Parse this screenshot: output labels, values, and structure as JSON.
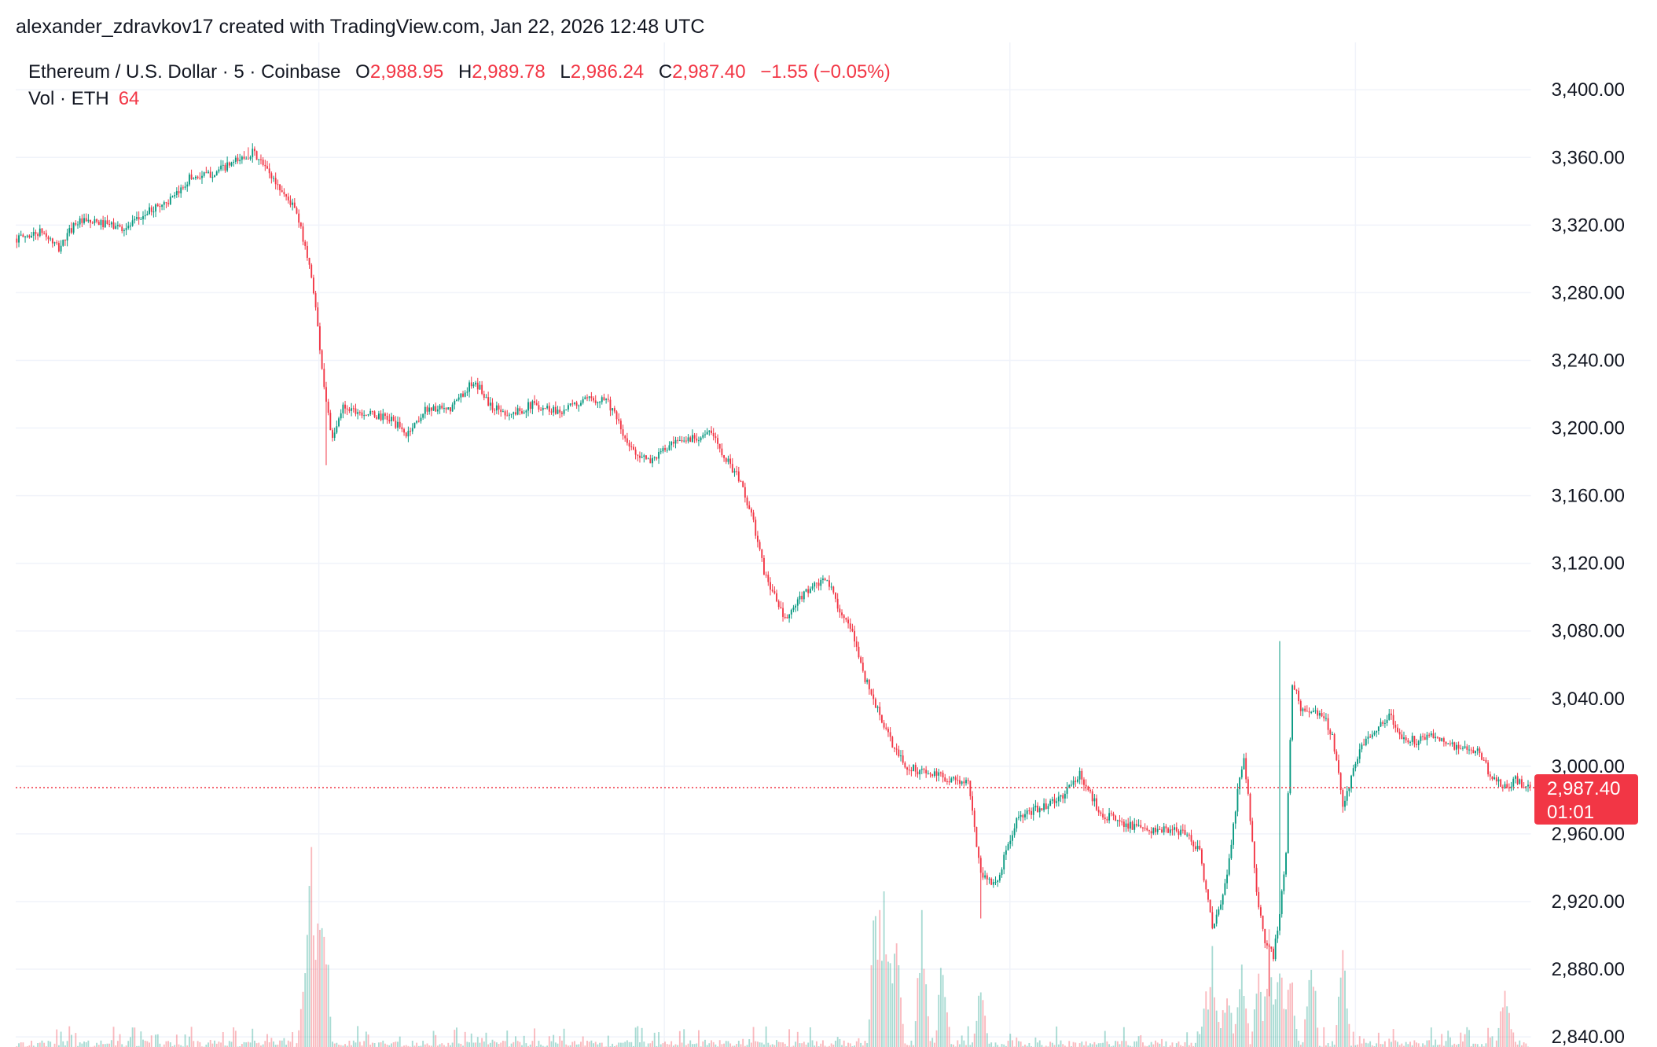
{
  "credit": {
    "author": "alexander_zdravkov17",
    "text": "alexander_zdravkov17 created with TradingView.com, Jan 22, 2026 12:48 UTC"
  },
  "legend": {
    "symbol": "Ethereum / U.S. Dollar · 5 · Coinbase",
    "open_label": "O",
    "open": "2,988.95",
    "high_label": "H",
    "high": "2,989.78",
    "low_label": "L",
    "low": "2,986.24",
    "close_label": "C",
    "close": "2,987.40",
    "change": "−1.55 (−0.05%)",
    "volume_label": "Vol · ETH",
    "volume": "64"
  },
  "price_tag": {
    "price": "2,987.40",
    "countdown": "01:01"
  },
  "colors": {
    "up": "#089981",
    "down": "#f23645",
    "grid": "#f0f3fa",
    "text": "#131722"
  },
  "chart_data": {
    "type": "candlestick",
    "symbol": "ETH/USD",
    "exchange": "Coinbase",
    "interval_minutes": 5,
    "y_axis": {
      "ticks": [
        "3,400.00",
        "3,360.00",
        "3,320.00",
        "3,280.00",
        "3,240.00",
        "3,200.00",
        "3,160.00",
        "3,120.00",
        "3,080.00",
        "3,040.00",
        "3,000.00",
        "2,960.00",
        "2,920.00",
        "2,880.00",
        "2,840.00"
      ],
      "range": [
        2834,
        3428
      ]
    },
    "grid": true,
    "last_price": 2987.4,
    "price_path": [
      [
        0,
        3312
      ],
      [
        12,
        3316
      ],
      [
        20,
        3306
      ],
      [
        28,
        3322
      ],
      [
        40,
        3321
      ],
      [
        52,
        3318
      ],
      [
        65,
        3330
      ],
      [
        75,
        3336
      ],
      [
        82,
        3348
      ],
      [
        92,
        3350
      ],
      [
        102,
        3356
      ],
      [
        112,
        3363
      ],
      [
        118,
        3354
      ],
      [
        126,
        3340
      ],
      [
        132,
        3330
      ],
      [
        137,
        3308
      ],
      [
        141,
        3282
      ],
      [
        146,
        3225
      ],
      [
        150,
        3192
      ],
      [
        155,
        3213
      ],
      [
        165,
        3209
      ],
      [
        178,
        3205
      ],
      [
        185,
        3196
      ],
      [
        195,
        3212
      ],
      [
        205,
        3210
      ],
      [
        215,
        3225
      ],
      [
        220,
        3224
      ],
      [
        225,
        3213
      ],
      [
        235,
        3208
      ],
      [
        245,
        3214
      ],
      [
        258,
        3210
      ],
      [
        270,
        3216
      ],
      [
        280,
        3218
      ],
      [
        285,
        3205
      ],
      [
        290,
        3190
      ],
      [
        300,
        3180
      ],
      [
        310,
        3189
      ],
      [
        320,
        3194
      ],
      [
        330,
        3197
      ],
      [
        338,
        3180
      ],
      [
        344,
        3168
      ],
      [
        350,
        3144
      ],
      [
        355,
        3115
      ],
      [
        365,
        3086
      ],
      [
        375,
        3104
      ],
      [
        385,
        3110
      ],
      [
        392,
        3090
      ],
      [
        398,
        3075
      ],
      [
        403,
        3052
      ],
      [
        410,
        3030
      ],
      [
        415,
        3015
      ],
      [
        422,
        3000
      ],
      [
        432,
        2996
      ],
      [
        442,
        2993
      ],
      [
        452,
        2990
      ],
      [
        458,
        2937
      ],
      [
        465,
        2930
      ],
      [
        475,
        2968
      ],
      [
        485,
        2975
      ],
      [
        495,
        2980
      ],
      [
        505,
        2995
      ],
      [
        515,
        2972
      ],
      [
        525,
        2967
      ],
      [
        535,
        2962
      ],
      [
        545,
        2962
      ],
      [
        555,
        2961
      ],
      [
        562,
        2950
      ],
      [
        568,
        2904
      ],
      [
        572,
        2917
      ],
      [
        576,
        2944
      ],
      [
        580,
        2985
      ],
      [
        583,
        3005
      ],
      [
        586,
        2970
      ],
      [
        589,
        2927
      ],
      [
        593,
        2895
      ],
      [
        597,
        2888
      ],
      [
        600,
        2912
      ],
      [
        603,
        2948
      ],
      [
        606,
        3050
      ],
      [
        610,
        3035
      ],
      [
        615,
        3030
      ],
      [
        620,
        3032
      ],
      [
        625,
        3018
      ],
      [
        630,
        2978
      ],
      [
        633,
        2988
      ],
      [
        638,
        3010
      ],
      [
        645,
        3022
      ],
      [
        652,
        3030
      ],
      [
        658,
        3017
      ],
      [
        665,
        3015
      ],
      [
        675,
        3018
      ],
      [
        685,
        3010
      ],
      [
        695,
        3008
      ],
      [
        700,
        2995
      ],
      [
        708,
        2986
      ],
      [
        712,
        2992
      ],
      [
        718,
        2988
      ]
    ],
    "highs": [
      [
        110,
        3366
      ],
      [
        600,
        3074
      ]
    ],
    "lows": [
      [
        147,
        3178
      ],
      [
        458,
        2910
      ],
      [
        595,
        2864
      ]
    ],
    "volume_spikes": [
      [
        137,
        130
      ],
      [
        140,
        270
      ],
      [
        143,
        210
      ],
      [
        146,
        200
      ],
      [
        408,
        210
      ],
      [
        410,
        170
      ],
      [
        412,
        210
      ],
      [
        415,
        120
      ],
      [
        418,
        150
      ],
      [
        430,
        190
      ],
      [
        440,
        130
      ],
      [
        458,
        100
      ],
      [
        565,
        75
      ],
      [
        568,
        120
      ],
      [
        575,
        90
      ],
      [
        582,
        130
      ],
      [
        590,
        100
      ],
      [
        595,
        150
      ],
      [
        600,
        120
      ],
      [
        605,
        110
      ],
      [
        615,
        140
      ],
      [
        630,
        130
      ],
      [
        707,
        90
      ]
    ]
  }
}
